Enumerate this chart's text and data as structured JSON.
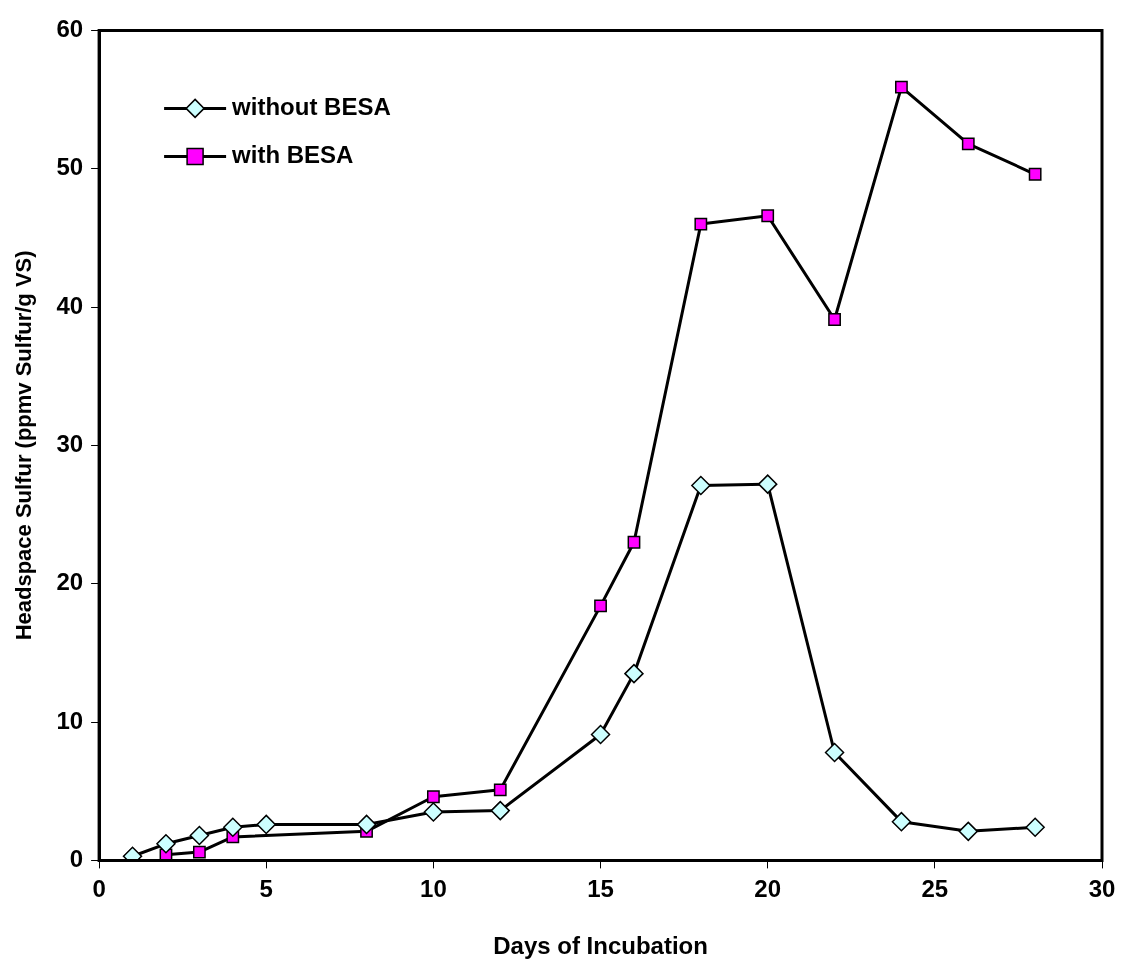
{
  "chart_data": {
    "type": "line",
    "xlabel": "Days of Incubation",
    "ylabel": "Headspace Sulfur (ppmv Sulfur/g VS)",
    "xlim": [
      0,
      30
    ],
    "xticks": [
      0,
      5,
      10,
      15,
      20,
      25,
      30
    ],
    "ylim": [
      0,
      60
    ],
    "yticks": [
      0,
      10,
      20,
      30,
      40,
      50,
      60
    ],
    "grid": false,
    "legend": "top left",
    "series": [
      {
        "name": "without BESA",
        "color": "#ccffff",
        "marker": "diamond",
        "x": [
          1,
          2,
          3,
          4,
          5,
          8,
          10,
          12,
          15,
          16,
          18,
          20,
          22,
          24,
          26,
          28
        ],
        "values": [
          0.3,
          1.2,
          1.8,
          2.4,
          2.6,
          2.6,
          3.5,
          3.6,
          9.1,
          13.5,
          27.1,
          27.2,
          7.8,
          2.8,
          2.1,
          2.4
        ]
      },
      {
        "name": "with BESA",
        "color": "#ff00ff",
        "marker": "square",
        "x": [
          2,
          3,
          4,
          8,
          10,
          12,
          15,
          16,
          18,
          20,
          22,
          24,
          26,
          28
        ],
        "values": [
          0.4,
          0.6,
          1.7,
          2.1,
          4.6,
          5.1,
          18.4,
          23.0,
          46.0,
          46.6,
          39.1,
          55.9,
          51.8,
          49.6
        ]
      }
    ]
  }
}
